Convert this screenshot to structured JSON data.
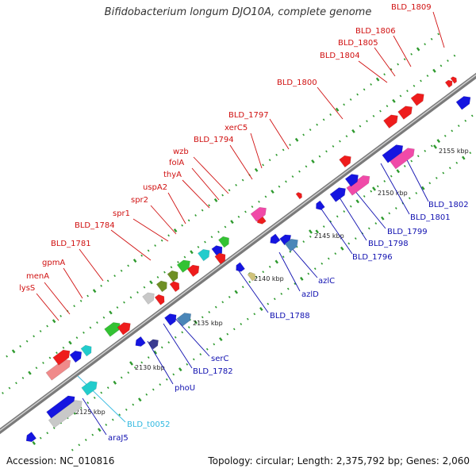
{
  "title": "Bifidobacterium longum DJO10A, complete genome",
  "footer": {
    "accession": "Accession: NC_010816",
    "topology": "Topology: circular; Length: 2,375,792 bp; Genes: 2,060"
  },
  "colors": {
    "red": "#ee1c1c",
    "blue": "#1515e0",
    "green": "#33c233",
    "cyan": "#22cccc",
    "pink": "#f04aa8",
    "gray": "#c8c8c8",
    "olive": "#6f8f25",
    "steel": "#4a86b8",
    "khaki": "#cfc27a",
    "navy": "#3a3a90",
    "salmon": "#f08a8a",
    "tick": "#2e9a2e",
    "labelRed": "#d01010",
    "labelBlue": "#1010b0",
    "labelCyan": "#30b8e0"
  },
  "ticks": [
    "2125 kbp",
    "2130 kbp",
    "2135 kbp",
    "2140 kbp",
    "2145 kbp",
    "2150 kbp",
    "2155 kbp"
  ],
  "labels_top": [
    "lysS",
    "menA",
    "gpmA",
    "BLD_1781",
    "BLD_1784",
    "spr1",
    "spr2",
    "uspA2",
    "thyA",
    "folA",
    "wzb",
    "BLD_1794",
    "xerC5",
    "BLD_1797",
    "BLD_1800",
    "BLD_1804",
    "BLD_1805",
    "BLD_1806",
    "BLD_1809"
  ],
  "labels_bottom": [
    "araJ5",
    "BLD_t0052",
    "phoU",
    "BLD_1782",
    "serC",
    "BLD_1788",
    "azlD",
    "azlC",
    "BLD_1796",
    "BLD_1798",
    "BLD_1799",
    "BLD_1801",
    "BLD_1802"
  ]
}
